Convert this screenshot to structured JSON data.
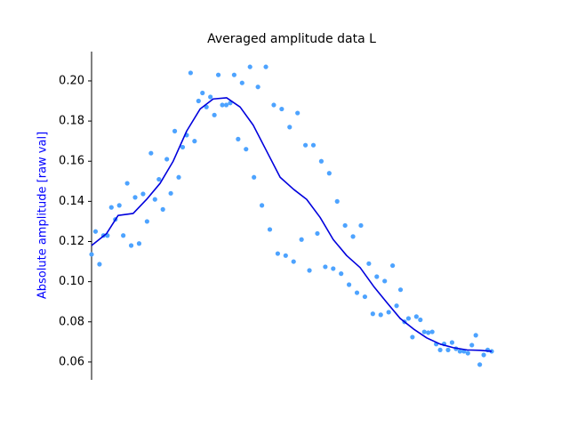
{
  "chart_data": {
    "type": "scatter",
    "title": "Averaged amplitude data L",
    "ylabel": "Absolute amplitude [raw val]",
    "ylabel_color": "#0000ff",
    "xlim": [
      0,
      101
    ],
    "ylim": [
      0.0511,
      0.2146
    ],
    "yticks": [
      0.06,
      0.08,
      {
        "value": 0.1,
        "label": "0.10"
      },
      0.12,
      0.14,
      0.16,
      0.18,
      {
        "value": 0.2,
        "label": "0.20"
      }
    ],
    "series": [
      {
        "kind": "scatter",
        "color": "#4da3ff",
        "x": [
          0,
          1,
          2,
          3,
          4,
          5,
          6,
          7,
          8,
          9,
          10,
          11,
          12,
          13,
          14,
          15,
          16,
          17,
          18,
          19,
          20,
          21,
          22,
          23,
          24,
          25,
          26,
          27,
          28,
          29,
          30,
          31,
          32,
          33,
          34,
          35,
          36,
          37,
          38,
          39,
          40,
          41,
          42,
          43,
          44,
          45,
          46,
          47,
          48,
          49,
          50,
          51,
          52,
          53,
          54,
          55,
          56,
          57,
          58,
          59,
          60,
          61,
          62,
          63,
          64,
          65,
          66,
          67,
          68,
          69,
          70,
          71,
          72,
          73,
          74,
          75,
          76,
          77,
          78,
          79,
          80,
          81,
          82,
          83,
          84,
          85,
          86,
          87,
          88,
          89,
          90,
          91,
          92,
          93,
          94,
          95,
          96,
          97,
          98,
          99,
          100,
          101
        ],
        "values": [
          0.1136,
          0.125,
          0.1087,
          0.123,
          0.123,
          0.137,
          0.131,
          0.138,
          0.123,
          0.149,
          0.118,
          0.142,
          0.119,
          0.1437,
          0.13,
          0.164,
          0.141,
          0.151,
          0.136,
          0.161,
          0.144,
          0.175,
          0.152,
          0.167,
          0.173,
          0.204,
          0.17,
          0.19,
          0.194,
          0.187,
          0.192,
          0.183,
          0.203,
          0.188,
          0.188,
          0.189,
          0.203,
          0.171,
          0.199,
          0.166,
          0.207,
          0.152,
          0.197,
          0.138,
          0.207,
          0.126,
          0.188,
          0.114,
          0.186,
          0.113,
          0.177,
          0.11,
          0.184,
          0.121,
          0.168,
          0.1056,
          0.168,
          0.124,
          0.16,
          0.1074,
          0.154,
          0.1065,
          0.14,
          0.104,
          0.128,
          0.0985,
          0.1225,
          0.0945,
          0.128,
          0.0925,
          0.109,
          0.084,
          0.1025,
          0.0835,
          0.1003,
          0.0848,
          0.108,
          0.088,
          0.096,
          0.08,
          0.0817,
          0.0724,
          0.0826,
          0.081,
          0.075,
          0.0746,
          0.075,
          0.0689,
          0.066,
          0.069,
          0.066,
          0.0697,
          0.0666,
          0.0653,
          0.0653,
          0.0644,
          0.0684,
          0.0733,
          0.0587,
          0.0635,
          0.066,
          0.0653
        ]
      },
      {
        "kind": "line",
        "color": "#0000dd",
        "x": [
          0,
          3.8,
          6.7,
          10.5,
          13.9,
          17.3,
          20.6,
          24,
          27.4,
          30.7,
          34.1,
          37.5,
          40.8,
          44.2,
          47.6,
          51,
          54.3,
          57.7,
          61,
          64.4,
          67.8,
          71.2,
          74.5,
          77.9,
          81.3,
          84.6,
          88,
          91.4,
          94.8,
          98.2,
          101
        ],
        "values": [
          0.118,
          0.124,
          0.133,
          0.134,
          0.141,
          0.149,
          0.16,
          0.175,
          0.186,
          0.191,
          0.1916,
          0.187,
          0.178,
          0.165,
          0.152,
          0.146,
          0.141,
          0.132,
          0.121,
          0.113,
          0.107,
          0.0977,
          0.0897,
          0.0817,
          0.0764,
          0.072,
          0.0689,
          0.0671,
          0.066,
          0.0658,
          0.0653
        ]
      }
    ]
  }
}
